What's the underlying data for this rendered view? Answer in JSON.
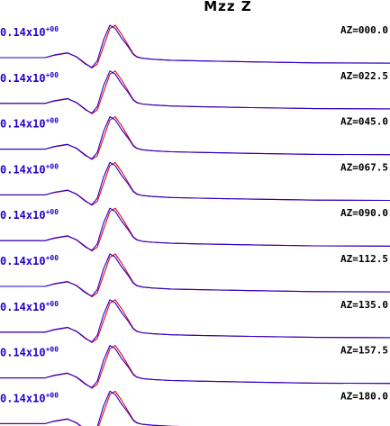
{
  "chart_data": {
    "type": "line",
    "title": "Mzz Z",
    "amplitude_label": {
      "mantissa": "0.14x10",
      "exponent": "+00",
      "color": "#2200cc"
    },
    "colors": {
      "observed": "#2200cc",
      "synthetic": "#e8001c"
    },
    "x": [
      0,
      50,
      60,
      75,
      85,
      95,
      102,
      108,
      115,
      122,
      128,
      135,
      142,
      148,
      152,
      158,
      170,
      190,
      220,
      280,
      350,
      433
    ],
    "traces": [
      {
        "label": "AZ=000.0"
      },
      {
        "label": "AZ=022.5"
      },
      {
        "label": "AZ=045.0"
      },
      {
        "label": "AZ=067.5"
      },
      {
        "label": "AZ=090.0"
      },
      {
        "label": "AZ=112.5"
      },
      {
        "label": "AZ=135.0"
      },
      {
        "label": "AZ=157.5"
      },
      {
        "label": "AZ=180.0"
      }
    ],
    "series": [
      {
        "color_key": "observed",
        "values": [
          0.0,
          0.0,
          0.08,
          0.15,
          0.02,
          -0.2,
          -0.3,
          -0.1,
          0.55,
          1.0,
          0.9,
          0.6,
          0.35,
          0.1,
          0.02,
          -0.02,
          -0.05,
          -0.08,
          -0.1,
          -0.13,
          -0.16,
          -0.17
        ]
      },
      {
        "color_key": "synthetic",
        "values": [
          0.0,
          0.0,
          0.07,
          0.14,
          0.03,
          -0.18,
          -0.32,
          -0.2,
          0.35,
          0.9,
          1.0,
          0.72,
          0.4,
          0.12,
          0.03,
          -0.02,
          -0.05,
          -0.08,
          -0.1,
          -0.13,
          -0.16,
          -0.17
        ]
      }
    ]
  }
}
